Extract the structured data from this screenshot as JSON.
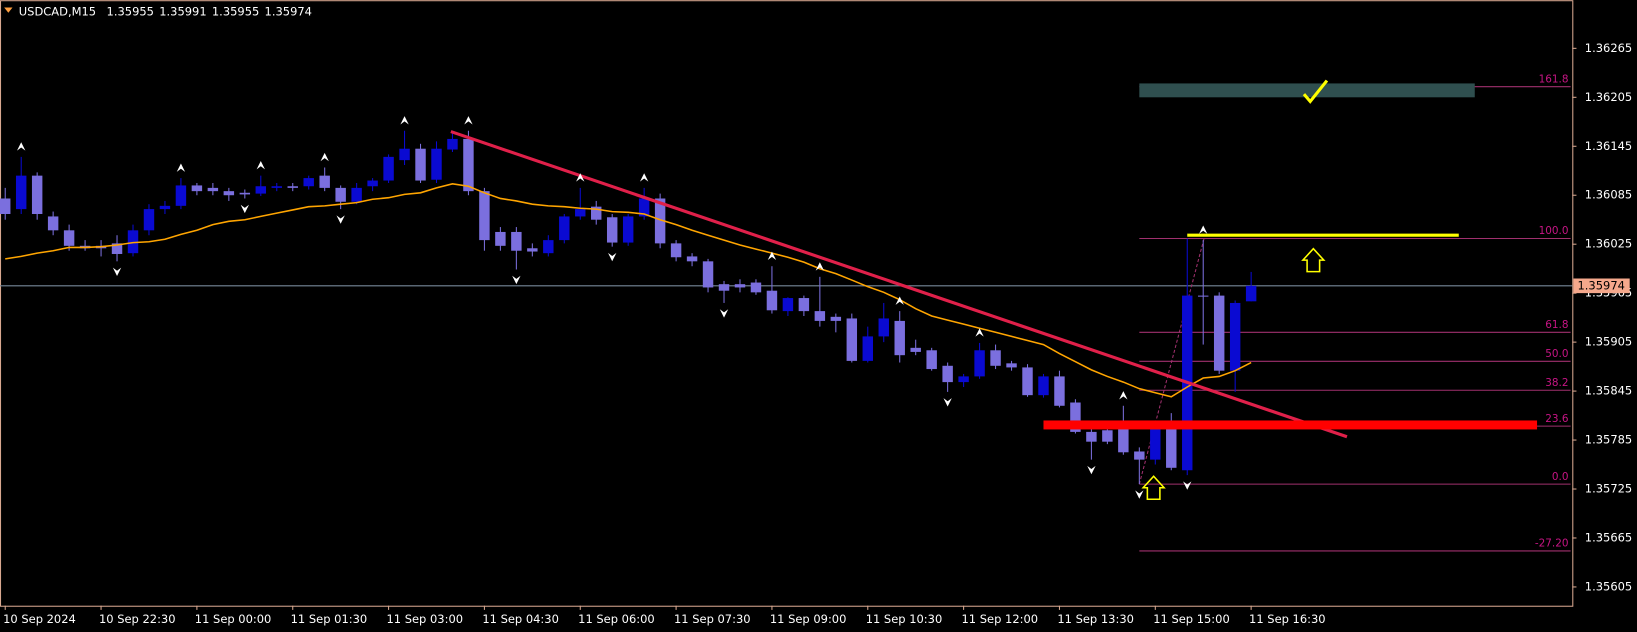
{
  "chart_data": {
    "type": "candlestick",
    "title": "USDCAD,M15",
    "categories": [
      "10 Sep 2024",
      null,
      null,
      null,
      null,
      null,
      "10 Sep 22:30",
      null,
      null,
      null,
      null,
      null,
      "11 Sep 00:00",
      null,
      null,
      null,
      null,
      null,
      "11 Sep 01:30",
      null,
      null,
      null,
      null,
      null,
      "11 Sep 03:00",
      null,
      null,
      null,
      null,
      null,
      "11 Sep 04:30",
      null,
      null,
      null,
      null,
      null,
      "11 Sep 06:00",
      null,
      null,
      null,
      null,
      null,
      "11 Sep 07:30",
      null,
      null,
      null,
      null,
      null,
      "11 Sep 09:00",
      null,
      null,
      null,
      null,
      null,
      "11 Sep 10:30",
      null,
      null,
      null,
      null,
      null,
      "11 Sep 12:00",
      null,
      null,
      null,
      null,
      null,
      "11 Sep 13:30",
      null,
      null,
      null,
      null,
      null,
      "11 Sep 15:00",
      null,
      null,
      null,
      null,
      null,
      "11 Sep 16:30"
    ],
    "open": [
      1.36081,
      1.36068,
      1.36109,
      1.36059,
      1.36042,
      1.36023,
      1.36023,
      1.36026,
      1.36014,
      1.36042,
      1.36068,
      1.36072,
      1.36097,
      1.36094,
      1.3609,
      1.36088,
      1.36087,
      1.36094,
      1.36096,
      1.36096,
      1.36109,
      1.36094,
      1.36077,
      1.36096,
      1.36103,
      1.36128,
      1.36142,
      1.36104,
      1.36141,
      1.36154,
      1.3609,
      1.3604,
      1.3604,
      1.3602,
      1.36014,
      1.3603,
      1.36059,
      1.36071,
      1.36058,
      1.36027,
      1.36059,
      1.36081,
      1.36026,
      1.3601,
      1.36004,
      1.35976,
      1.35976,
      1.35978,
      1.35968,
      1.35943,
      1.35959,
      1.35943,
      1.35936,
      1.35934,
      1.35882,
      1.35912,
      1.35931,
      1.35898,
      1.35895,
      1.35876,
      1.35856,
      1.35863,
      1.35895,
      1.35879,
      1.35874,
      1.3584,
      1.35863,
      1.35831,
      1.35795,
      1.35797,
      1.35799,
      1.35771,
      1.35761,
      1.35799,
      1.35748,
      1.35962,
      1.35962,
      1.3587,
      1.35955
    ],
    "high": [
      1.36094,
      1.36132,
      1.36113,
      1.36065,
      1.36049,
      1.3603,
      1.3603,
      1.36036,
      1.36049,
      1.36074,
      1.36078,
      1.36106,
      1.361,
      1.361,
      1.36094,
      1.36092,
      1.36109,
      1.361,
      1.361,
      1.36109,
      1.36119,
      1.36097,
      1.361,
      1.36106,
      1.36135,
      1.36164,
      1.36148,
      1.36151,
      1.36164,
      1.36164,
      1.36094,
      1.36046,
      1.36046,
      1.36026,
      1.36036,
      1.36062,
      1.36094,
      1.36078,
      1.36062,
      1.36062,
      1.36094,
      1.36087,
      1.3603,
      1.36014,
      1.36007,
      1.3598,
      1.35982,
      1.35982,
      1.35998,
      1.3596,
      1.35962,
      1.35985,
      1.3594,
      1.3594,
      1.35924,
      1.35953,
      1.35943,
      1.35908,
      1.35898,
      1.3588,
      1.35866,
      1.35904,
      1.35902,
      1.35882,
      1.35878,
      1.35866,
      1.3587,
      1.35835,
      1.35799,
      1.35806,
      1.35827,
      1.35776,
      1.35806,
      1.35818,
      1.36032,
      1.3603,
      1.35966,
      1.35956,
      1.35991
    ],
    "low": [
      1.36055,
      1.36062,
      1.36055,
      1.36036,
      1.36017,
      1.36017,
      1.3601,
      1.36004,
      1.3601,
      1.36036,
      1.36062,
      1.36068,
      1.36085,
      1.36085,
      1.36078,
      1.36081,
      1.36084,
      1.3609,
      1.3609,
      1.36092,
      1.3609,
      1.36068,
      1.36074,
      1.3609,
      1.361,
      1.36122,
      1.361,
      1.361,
      1.36138,
      1.36085,
      1.36017,
      1.36017,
      1.35994,
      1.3601,
      1.3601,
      1.36026,
      1.36055,
      1.36049,
      1.36022,
      1.36023,
      1.36055,
      1.3602,
      1.36004,
      1.35998,
      1.35966,
      1.35953,
      1.35966,
      1.35963,
      1.3594,
      1.35937,
      1.35937,
      1.35924,
      1.35917,
      1.3588,
      1.3588,
      1.35905,
      1.3588,
      1.35889,
      1.3587,
      1.35844,
      1.3585,
      1.3586,
      1.35872,
      1.3587,
      1.35838,
      1.35837,
      1.35825,
      1.35793,
      1.35761,
      1.3578,
      1.35767,
      1.35731,
      1.35755,
      1.35748,
      1.35742,
      1.35902,
      1.35866,
      1.35844,
      1.35955
    ],
    "close": [
      1.36062,
      1.36109,
      1.36062,
      1.36042,
      1.36023,
      1.3602,
      1.3602,
      1.36013,
      1.36042,
      1.36068,
      1.36072,
      1.36097,
      1.3609,
      1.3609,
      1.36085,
      1.36086,
      1.36096,
      1.36096,
      1.36094,
      1.36106,
      1.36094,
      1.36077,
      1.36094,
      1.36103,
      1.36132,
      1.36142,
      1.36103,
      1.36142,
      1.36154,
      1.3609,
      1.3603,
      1.36023,
      1.36017,
      1.36016,
      1.3603,
      1.36059,
      1.36068,
      1.36055,
      1.36027,
      1.36059,
      1.36081,
      1.36026,
      1.36009,
      1.36004,
      1.35972,
      1.35968,
      1.35972,
      1.35966,
      1.35944,
      1.35959,
      1.35943,
      1.35931,
      1.35931,
      1.35882,
      1.35912,
      1.35934,
      1.35889,
      1.35893,
      1.35872,
      1.35856,
      1.35863,
      1.35895,
      1.35876,
      1.35874,
      1.3584,
      1.35863,
      1.35827,
      1.35795,
      1.35783,
      1.35783,
      1.3577,
      1.35761,
      1.35799,
      1.35751,
      1.35962,
      1.35961,
      1.3587,
      1.35953,
      1.35974
    ],
    "bull_color": "#0a0ad2",
    "bear_color": "#7b6fde",
    "ma": {
      "color": "#ffa500",
      "values": [
        1.36007,
        1.3601,
        1.36014,
        1.36017,
        1.36021,
        1.36021,
        1.36022,
        1.36024,
        1.36027,
        1.36028,
        1.36031,
        1.36037,
        1.36042,
        1.36049,
        1.36053,
        1.36055,
        1.36059,
        1.36063,
        1.36067,
        1.36071,
        1.36072,
        1.36074,
        1.36076,
        1.3608,
        1.36082,
        1.36086,
        1.36088,
        1.36094,
        1.36099,
        1.36096,
        1.36088,
        1.36081,
        1.36078,
        1.36074,
        1.36072,
        1.36071,
        1.36069,
        1.36068,
        1.36065,
        1.36064,
        1.36062,
        1.36055,
        1.36049,
        1.36042,
        1.36036,
        1.3603,
        1.36024,
        1.36019,
        1.36014,
        1.36009,
        1.36003,
        1.35995,
        1.35989,
        1.35981,
        1.35973,
        1.35966,
        1.35957,
        1.35946,
        1.35937,
        1.35932,
        1.35927,
        1.35922,
        1.35917,
        1.35912,
        1.35907,
        1.35902,
        1.35891,
        1.35881,
        1.35871,
        1.35863,
        1.35856,
        1.35848,
        1.35843,
        1.35838,
        1.3585,
        1.35861,
        1.35863,
        1.3587,
        1.3588
      ]
    },
    "fractals": {
      "color": "#ffffff",
      "up": [
        1,
        11,
        16,
        20,
        25,
        29,
        36,
        40,
        48,
        51,
        56,
        61,
        70,
        75
      ],
      "down": [
        7,
        15,
        21,
        32,
        38,
        45,
        59,
        68,
        71,
        74
      ]
    },
    "trendline": {
      "color": "#e0204a",
      "x": [
        27.9,
        84
      ],
      "values": [
        1.36163,
        1.35789
      ]
    },
    "zones": [
      {
        "color": "#2f4f4f",
        "x": [
          71,
          92
        ],
        "range": [
          1.36205,
          1.36222
        ]
      },
      {
        "color": "#ff0000",
        "x": [
          65,
          95.9
        ],
        "range": [
          1.35798,
          1.35809
        ]
      }
    ],
    "level_line": {
      "color": "#ffff00",
      "x": [
        74,
        91
      ],
      "value": 1.36036
    },
    "fib": {
      "color": "#a0306e",
      "label_color": "#c71585",
      "low": 1.35731,
      "high": 1.36032,
      "x": [
        71,
        98
      ],
      "levels": [
        161.8,
        {
          "value": 100,
          "label": "100.0"
        },
        61.8,
        {
          "value": 50,
          "label": "50.0"
        },
        38.2,
        23.6,
        {
          "value": 0,
          "label": "0.0"
        },
        {
          "value": -27.2,
          "label": "-27.20"
        }
      ]
    },
    "price_line_color": "#778899",
    "price_label_color": "#f5a88c",
    "ylim": [
      1.35582,
      1.36324
    ],
    "yticks": [
      1.36265,
      1.36205,
      1.36145,
      1.36085,
      1.36025,
      1.35965,
      1.35905,
      1.35845,
      1.35785,
      1.35725,
      1.35665,
      1.35605
    ],
    "grid": false
  }
}
